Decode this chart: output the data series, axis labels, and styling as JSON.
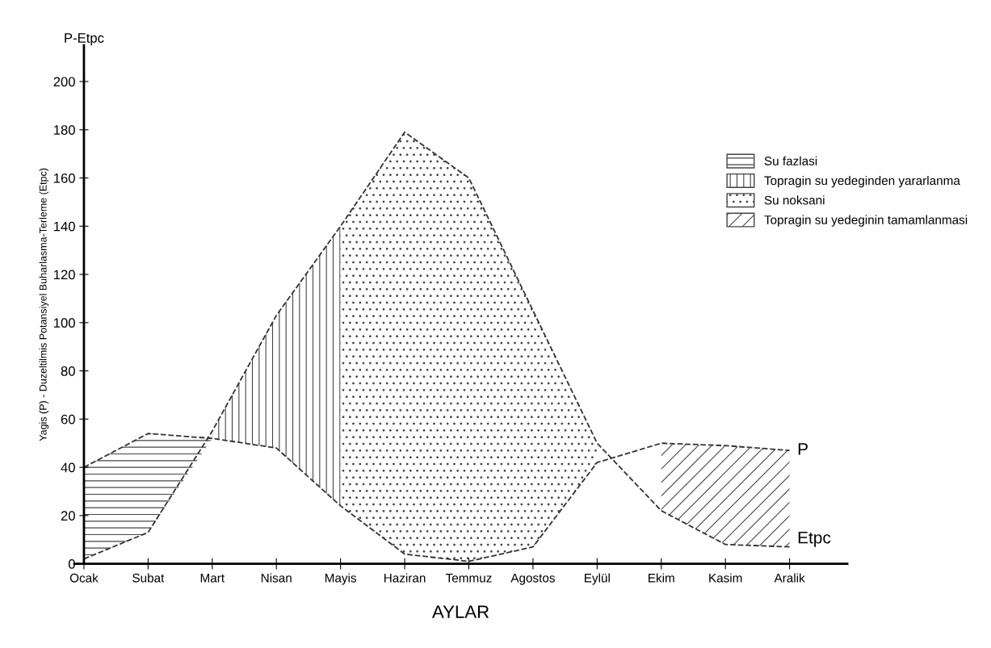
{
  "chart_data": {
    "type": "line",
    "xlabel": "AYLAR",
    "ylabel": "Yagis (P) - Duzeltilmis Potansiyel Buharlasma-Terleme (Etpc)",
    "annotations": [
      "P-Etpc"
    ],
    "categories": [
      "Ocak",
      "Subat",
      "Mart",
      "Nisan",
      "Mayis",
      "Haziran",
      "Temmuz",
      "Agostos",
      "Eylül",
      "Ekim",
      "Kasim",
      "Aralik"
    ],
    "series": [
      {
        "name": "P",
        "color": "#333333",
        "values": [
          40,
          54,
          52,
          48,
          24,
          4,
          1,
          7,
          42,
          50,
          49,
          47
        ]
      },
      {
        "name": "Etpc",
        "color": "#333333",
        "values": [
          2,
          13,
          55,
          103,
          140,
          179,
          160,
          105,
          50,
          22,
          8,
          7
        ]
      },
      {
        "type": "area",
        "name": "Su fazlasi",
        "color": "#444444",
        "values": [
          40,
          54,
          52,
          null,
          null,
          null,
          null,
          null,
          null,
          null,
          null,
          null
        ]
      },
      {
        "type": "area",
        "name": "Topragin su yedeginden yararlanma",
        "color": "#444444",
        "values": [
          null,
          null,
          55,
          103,
          140,
          null,
          null,
          null,
          null,
          null,
          null,
          null
        ]
      },
      {
        "type": "area",
        "name": "Su noksani",
        "color": "#444444",
        "values": [
          null,
          null,
          null,
          null,
          140,
          179,
          160,
          105,
          50,
          null,
          null,
          null
        ]
      },
      {
        "type": "area",
        "name": "Topragin su yedeginin tamamlanmasi",
        "color": "#444444",
        "values": [
          null,
          null,
          null,
          null,
          null,
          null,
          null,
          null,
          null,
          50,
          49,
          47
        ]
      }
    ],
    "ylim": [
      0,
      215
    ],
    "yticks": [
      0,
      20,
      40,
      60,
      80,
      100,
      120,
      140,
      160,
      180,
      200
    ],
    "line_style": "dashed",
    "marker": "none",
    "grid": false,
    "legend": "right"
  }
}
